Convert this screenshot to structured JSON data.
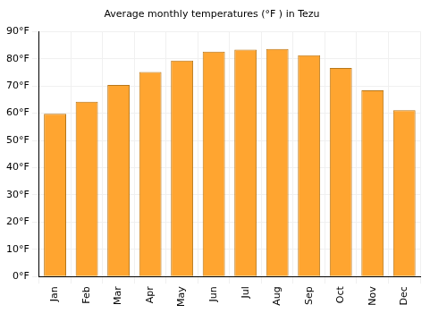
{
  "chart_data": {
    "type": "bar",
    "title": "Average monthly temperatures (°F ) in Tezu",
    "categories": [
      "Jan",
      "Feb",
      "Mar",
      "Apr",
      "May",
      "Jun",
      "Jul",
      "Aug",
      "Sep",
      "Oct",
      "Nov",
      "Dec"
    ],
    "values": [
      59.8,
      64.2,
      70.4,
      75.1,
      79.3,
      82.6,
      83.3,
      83.6,
      81.3,
      76.6,
      68.4,
      61.1
    ],
    "color": "#ffa530",
    "ylim": [
      0,
      90
    ],
    "yticks": [
      {
        "value": 0,
        "label": "0°F"
      },
      {
        "value": 10,
        "label": "10°F"
      },
      {
        "value": 20,
        "label": "20°F"
      },
      {
        "value": 30,
        "label": "30°F"
      },
      {
        "value": 40,
        "label": "40°F"
      },
      {
        "value": 50,
        "label": "50°F"
      },
      {
        "value": 60,
        "label": "60°F"
      },
      {
        "value": 70,
        "label": "70°F"
      },
      {
        "value": 80,
        "label": "80°F"
      },
      {
        "value": 90,
        "label": "90°F"
      }
    ],
    "grid": true
  }
}
